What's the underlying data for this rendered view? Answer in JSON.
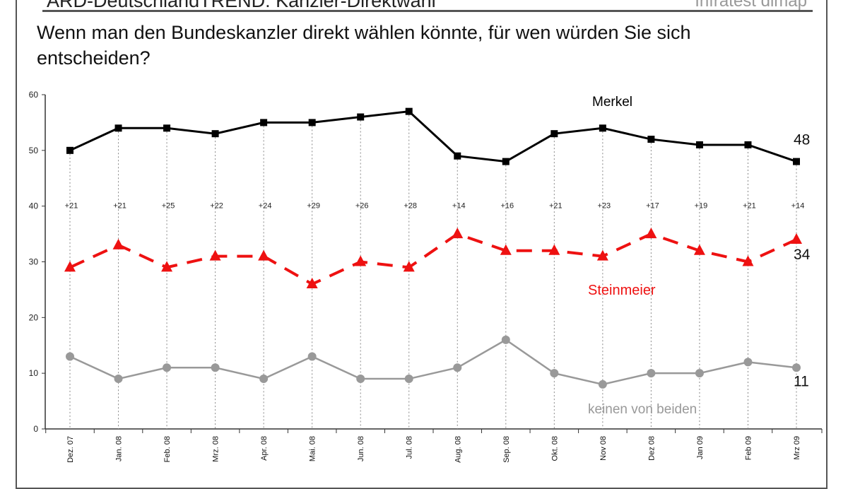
{
  "header": {
    "title": "ARD-DeutschlandTREND: Kanzler-Direktwahl",
    "source": "Infratest dimap",
    "question": "Wenn man den Bundeskanzler direkt wählen könnte, für wen würden Sie sich entscheiden?"
  },
  "chart_data": {
    "type": "line",
    "ylim": [
      0,
      60
    ],
    "yticks": [
      0,
      10,
      20,
      30,
      40,
      50,
      60
    ],
    "categories": [
      "Dez. 07",
      "Jan. 08",
      "Feb. 08",
      "Mrz. 08",
      "Apr. 08",
      "Mai. 08",
      "Jun. 08",
      "Jul. 08",
      "Aug. 08",
      "Sep. 08",
      "Okt. 08",
      "Nov 08",
      "Dez 08",
      "Jan 09",
      "Feb 09",
      "Mrz 09"
    ],
    "series": [
      {
        "name": "Merkel",
        "color": "#000000",
        "marker": "square",
        "style": "solid",
        "end_label": "48",
        "values": [
          50,
          54,
          54,
          53,
          55,
          55,
          56,
          57,
          49,
          48,
          53,
          54,
          52,
          51,
          51,
          48
        ]
      },
      {
        "name": "Steinmeier",
        "color": "#ee1111",
        "marker": "triangle",
        "style": "dashed",
        "end_label": "34",
        "values": [
          29,
          33,
          29,
          31,
          31,
          26,
          30,
          29,
          35,
          32,
          32,
          31,
          35,
          32,
          30,
          34
        ]
      },
      {
        "name": "keinen von beiden",
        "color": "#999999",
        "marker": "circle",
        "style": "solid",
        "end_label": "11",
        "values": [
          13,
          9,
          11,
          11,
          9,
          13,
          9,
          9,
          11,
          16,
          10,
          8,
          10,
          10,
          12,
          11
        ]
      }
    ],
    "lead_labels": [
      "+21",
      "+21",
      "+25",
      "+22",
      "+24",
      "+29",
      "+26",
      "+28",
      "+14",
      "+16",
      "+21",
      "+23",
      "+17",
      "+19",
      "+21",
      "+14"
    ],
    "grid": false
  }
}
